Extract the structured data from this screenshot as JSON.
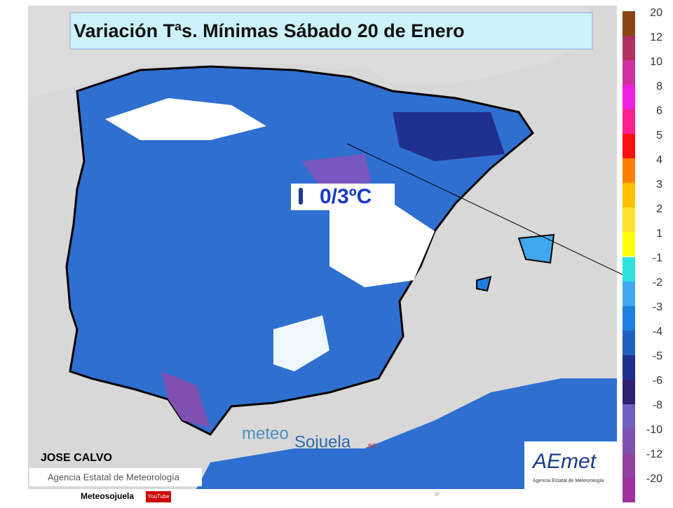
{
  "header": {
    "title": "Variación Tªs. Mínimas Sábado 20 de Enero"
  },
  "callout": {
    "text": "0/3ºC"
  },
  "legend": {
    "upper": [
      {
        "label": "20",
        "color": "#8b4513"
      },
      {
        "label": "12",
        "color": "#b03060"
      },
      {
        "label": "10",
        "color": "#d030a0"
      },
      {
        "label": "8",
        "color": "#f020e0"
      },
      {
        "label": "6",
        "color": "#ff2090"
      },
      {
        "label": "5",
        "color": "#ff1010"
      },
      {
        "label": "4",
        "color": "#ff8000"
      },
      {
        "label": "3",
        "color": "#ffc000"
      },
      {
        "label": "2",
        "color": "#ffe030"
      },
      {
        "label": "1",
        "color": "#ffff00"
      }
    ],
    "lower": [
      {
        "label": "-1",
        "color": "#30e0e0"
      },
      {
        "label": "-2",
        "color": "#40a8f0"
      },
      {
        "label": "-3",
        "color": "#2080e0"
      },
      {
        "label": "-4",
        "color": "#2060c0"
      },
      {
        "label": "-5",
        "color": "#203090"
      },
      {
        "label": "-6",
        "color": "#302070"
      },
      {
        "label": "-8",
        "color": "#7060c0"
      },
      {
        "label": "-10",
        "color": "#8050b0"
      },
      {
        "label": "-12",
        "color": "#9040a0"
      },
      {
        "label": "-20",
        "color": "#a030a0"
      }
    ]
  },
  "credits": {
    "author": "JOSE CALVO",
    "source": "Agencia Estatal de Meteorología",
    "brand_left": "meteo",
    "brand_right": "Sojuela",
    "brand_suffix": ".es",
    "aemet": "AEmet",
    "aemet_sub": "Agencia Estatal de Meteorología",
    "footer": "Meteosojuela",
    "youtube": "YouTube",
    "scale_mark": "0º"
  }
}
